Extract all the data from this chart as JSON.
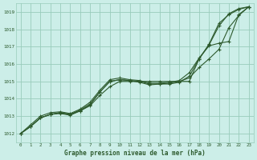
{
  "background_color": "#cceee8",
  "grid_color": "#99ccbb",
  "line_color": "#2d5a2d",
  "title": "Graphe pression niveau de la mer (hPa)",
  "xlim": [
    -0.5,
    23.5
  ],
  "ylim": [
    1011.5,
    1019.5
  ],
  "xticks": [
    0,
    1,
    2,
    3,
    4,
    5,
    6,
    7,
    8,
    9,
    10,
    11,
    12,
    13,
    14,
    15,
    16,
    17,
    18,
    19,
    20,
    21,
    22,
    23
  ],
  "yticks": [
    1012,
    1013,
    1014,
    1015,
    1016,
    1017,
    1018,
    1019
  ],
  "series": [
    {
      "x": [
        0,
        1,
        2,
        3,
        4,
        5,
        6,
        7,
        8,
        9,
        10,
        11,
        12,
        13,
        14,
        15,
        16,
        17,
        18,
        19,
        20,
        21,
        22,
        23
      ],
      "y": [
        1012.0,
        1012.4,
        1012.9,
        1013.1,
        1013.2,
        1013.1,
        1013.3,
        1013.6,
        1014.2,
        1014.7,
        1015.0,
        1015.0,
        1015.0,
        1015.0,
        1015.0,
        1015.0,
        1015.0,
        1015.0,
        1016.3,
        1017.1,
        1018.2,
        1018.9,
        1019.2,
        1019.3
      ]
    },
    {
      "x": [
        0,
        1,
        2,
        3,
        4,
        5,
        6,
        7,
        8,
        9,
        10,
        11,
        12,
        13,
        14,
        15,
        16,
        17,
        18,
        19,
        20,
        21,
        22,
        23
      ],
      "y": [
        1012.0,
        1012.4,
        1012.9,
        1013.1,
        1013.2,
        1013.1,
        1013.35,
        1013.7,
        1014.4,
        1015.0,
        1015.1,
        1015.05,
        1015.0,
        1014.85,
        1014.85,
        1014.9,
        1015.0,
        1015.2,
        1015.8,
        1016.3,
        1016.85,
        1018.1,
        1018.8,
        1019.3
      ]
    },
    {
      "x": [
        0,
        1,
        2,
        3,
        4,
        5,
        6,
        7,
        8,
        9,
        10,
        11,
        12,
        13,
        14,
        15,
        16,
        17,
        18,
        19,
        20,
        21,
        22,
        23
      ],
      "y": [
        1012.0,
        1012.4,
        1012.9,
        1013.1,
        1013.15,
        1013.05,
        1013.3,
        1013.65,
        1014.4,
        1015.0,
        1015.1,
        1015.05,
        1014.95,
        1014.8,
        1014.85,
        1014.85,
        1014.95,
        1015.3,
        1016.3,
        1017.15,
        1018.35,
        1018.85,
        1019.15,
        1019.3
      ]
    },
    {
      "x": [
        0,
        1,
        2,
        3,
        4,
        5,
        6,
        7,
        8,
        9,
        10,
        11,
        12,
        13,
        14,
        15,
        16,
        17,
        18,
        19,
        20,
        21,
        22,
        23
      ],
      "y": [
        1012.0,
        1012.5,
        1013.0,
        1013.2,
        1013.25,
        1013.15,
        1013.4,
        1013.8,
        1014.5,
        1015.1,
        1015.2,
        1015.1,
        1015.05,
        1014.9,
        1014.9,
        1014.95,
        1015.05,
        1015.5,
        1016.35,
        1017.05,
        1017.2,
        1017.3,
        1018.85,
        1019.3
      ]
    }
  ]
}
